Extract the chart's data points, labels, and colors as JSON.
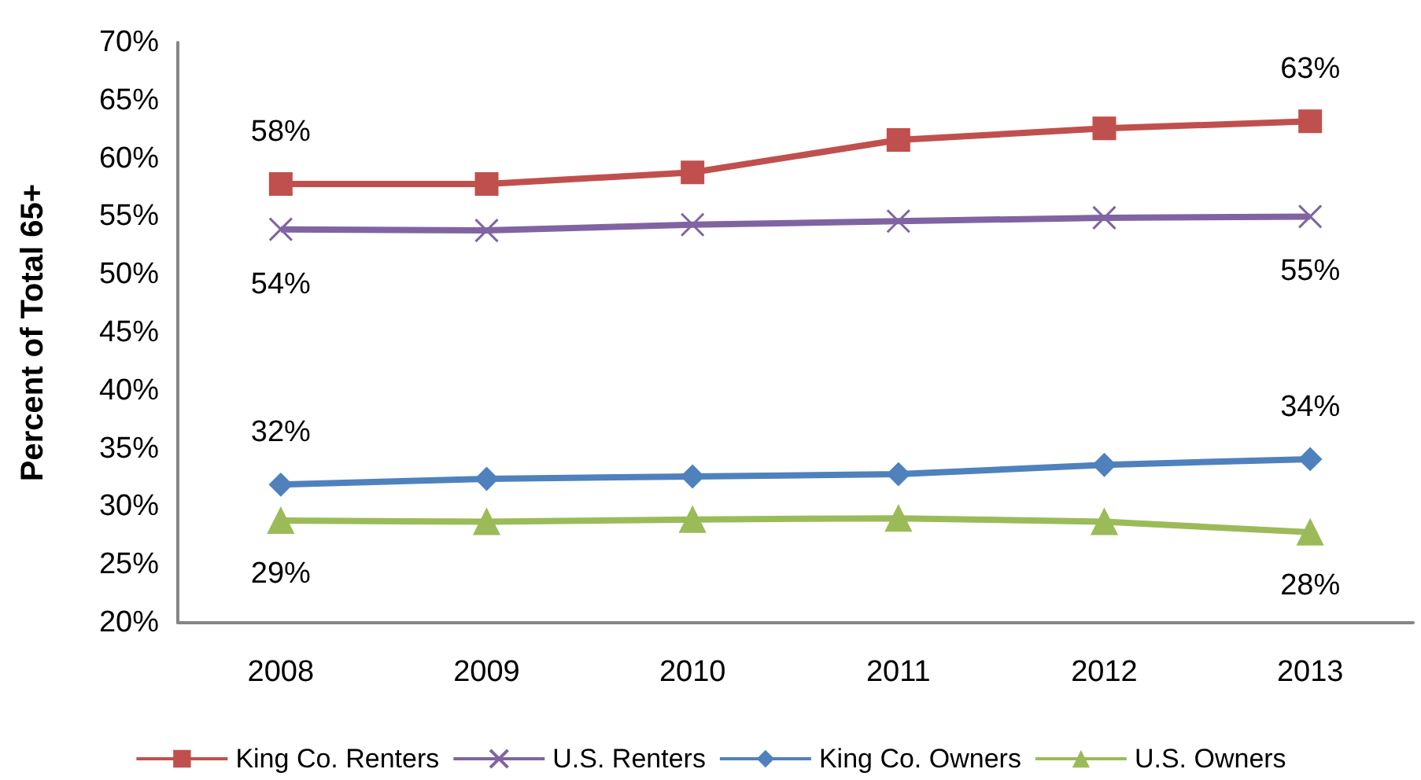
{
  "chart_data": {
    "type": "line",
    "ylabel": "Percent of Total 65+",
    "categories": [
      "2008",
      "2009",
      "2010",
      "2011",
      "2012",
      "2013"
    ],
    "series": [
      {
        "name": "King Co. Renters",
        "color": "#c0504d",
        "marker": "square",
        "values": [
          57.8,
          57.8,
          58.8,
          61.6,
          62.6,
          63.2
        ],
        "value_labels": [
          "58%",
          null,
          null,
          null,
          null,
          "63%"
        ]
      },
      {
        "name": "U.S. Renters",
        "color": "#8064a2",
        "marker": "cross",
        "values": [
          53.9,
          53.8,
          54.3,
          54.6,
          54.9,
          55.0
        ],
        "value_labels": [
          "54%",
          null,
          null,
          null,
          null,
          "55%"
        ]
      },
      {
        "name": "King Co. Owners",
        "color": "#4f81bd",
        "marker": "diamond",
        "values": [
          31.9,
          32.4,
          32.6,
          32.8,
          33.6,
          34.1
        ],
        "value_labels": [
          "32%",
          null,
          null,
          null,
          null,
          "34%"
        ]
      },
      {
        "name": "U.S. Owners",
        "color": "#9bbb59",
        "marker": "triangle",
        "values": [
          28.8,
          28.7,
          28.9,
          29.0,
          28.7,
          27.8
        ],
        "value_labels": [
          "29%",
          null,
          null,
          null,
          null,
          "28%"
        ]
      }
    ],
    "ylim": [
      20,
      70
    ],
    "yticks": [
      {
        "value": 20,
        "label": "20%"
      },
      {
        "value": 25,
        "label": "25%"
      },
      {
        "value": 30,
        "label": "30%"
      },
      {
        "value": 35,
        "label": "35%"
      },
      {
        "value": 40,
        "label": "40%"
      },
      {
        "value": 45,
        "label": "45%"
      },
      {
        "value": 50,
        "label": "50%"
      },
      {
        "value": 55,
        "label": "55%"
      },
      {
        "value": 60,
        "label": "60%"
      },
      {
        "value": 65,
        "label": "65%"
      },
      {
        "value": 70,
        "label": "70%"
      }
    ],
    "grid": false,
    "legend": "bottom"
  }
}
